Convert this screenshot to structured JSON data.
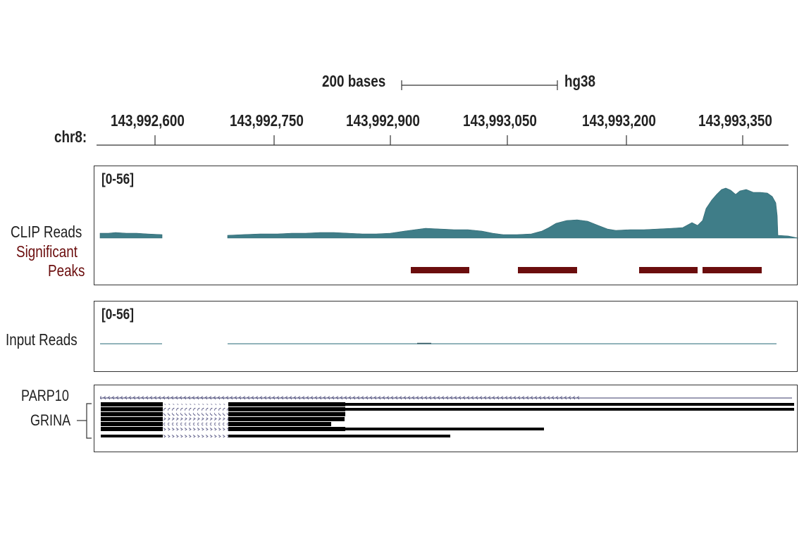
{
  "scale": {
    "length_label": "200 bases",
    "assembly": "hg38"
  },
  "ruler": {
    "chrom_label": "chr8:",
    "ticks": [
      "143,992,600",
      "143,992,750",
      "143,992,900",
      "143,993,050",
      "143,993,200",
      "143,993,350"
    ]
  },
  "clip_panel": {
    "range_label": "[0-56]",
    "reads_label": "CLIP Reads",
    "peaks_label_line1": "Significant",
    "peaks_label_line2": "Peaks",
    "signal_color": "#3f7d88",
    "peak_color": "#6b0d0d",
    "peak_count": 4
  },
  "input_panel": {
    "range_label": "[0-56]",
    "reads_label": "Input Reads"
  },
  "genes_panel": {
    "gene1": "PARP10",
    "gene2": "GRINA",
    "transcript_count": 7
  },
  "colors": {
    "frame": "#333333",
    "gene": "#000000",
    "intron_line": "#3a3a6a"
  }
}
